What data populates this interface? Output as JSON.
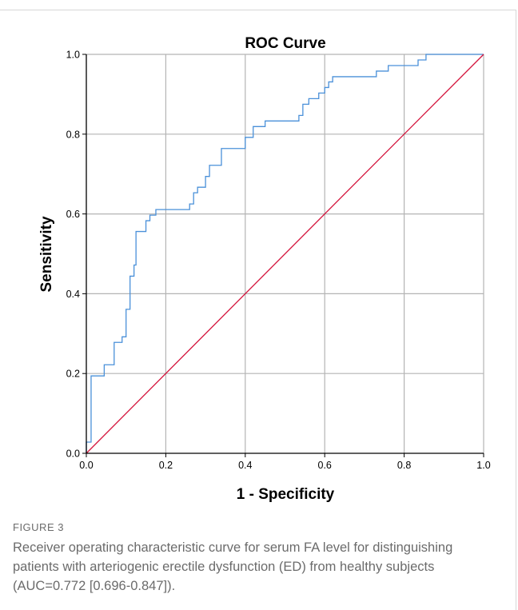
{
  "colors": {
    "grid": "#b4b4b4",
    "axis": "#000000",
    "roc_line": "#4a90d9",
    "reference_line": "#d4143c",
    "caption_text": "#6b6b6b"
  },
  "chart_data": {
    "type": "line",
    "title": "ROC Curve",
    "xlabel": "1 - Specificity",
    "ylabel": "Sensitivity",
    "xlim": [
      0,
      1
    ],
    "ylim": [
      0,
      1
    ],
    "grid": true,
    "x_ticks": [
      "0.0",
      "0.2",
      "0.4",
      "0.6",
      "0.8",
      "1.0"
    ],
    "y_ticks": [
      "0.0",
      "0.2",
      "0.4",
      "0.6",
      "0.8",
      "1.0"
    ],
    "series": [
      {
        "role": "roc",
        "color": "#4a90d9",
        "points": [
          [
            0,
            0
          ],
          [
            0,
            0.028
          ],
          [
            0.012,
            0.028
          ],
          [
            0.012,
            0.194
          ],
          [
            0.045,
            0.194
          ],
          [
            0.045,
            0.222
          ],
          [
            0.07,
            0.222
          ],
          [
            0.07,
            0.278
          ],
          [
            0.09,
            0.278
          ],
          [
            0.09,
            0.292
          ],
          [
            0.1,
            0.292
          ],
          [
            0.1,
            0.361
          ],
          [
            0.11,
            0.361
          ],
          [
            0.11,
            0.444
          ],
          [
            0.12,
            0.444
          ],
          [
            0.12,
            0.472
          ],
          [
            0.125,
            0.472
          ],
          [
            0.125,
            0.556
          ],
          [
            0.15,
            0.556
          ],
          [
            0.15,
            0.583
          ],
          [
            0.16,
            0.583
          ],
          [
            0.16,
            0.597
          ],
          [
            0.175,
            0.597
          ],
          [
            0.175,
            0.611
          ],
          [
            0.26,
            0.611
          ],
          [
            0.26,
            0.625
          ],
          [
            0.27,
            0.625
          ],
          [
            0.27,
            0.653
          ],
          [
            0.28,
            0.653
          ],
          [
            0.28,
            0.667
          ],
          [
            0.3,
            0.667
          ],
          [
            0.3,
            0.694
          ],
          [
            0.31,
            0.694
          ],
          [
            0.31,
            0.722
          ],
          [
            0.34,
            0.722
          ],
          [
            0.34,
            0.764
          ],
          [
            0.4,
            0.764
          ],
          [
            0.4,
            0.792
          ],
          [
            0.42,
            0.792
          ],
          [
            0.42,
            0.819
          ],
          [
            0.45,
            0.819
          ],
          [
            0.45,
            0.833
          ],
          [
            0.535,
            0.833
          ],
          [
            0.535,
            0.847
          ],
          [
            0.545,
            0.847
          ],
          [
            0.545,
            0.875
          ],
          [
            0.56,
            0.875
          ],
          [
            0.56,
            0.889
          ],
          [
            0.585,
            0.889
          ],
          [
            0.585,
            0.903
          ],
          [
            0.6,
            0.903
          ],
          [
            0.6,
            0.917
          ],
          [
            0.61,
            0.917
          ],
          [
            0.61,
            0.931
          ],
          [
            0.62,
            0.931
          ],
          [
            0.62,
            0.944
          ],
          [
            0.73,
            0.944
          ],
          [
            0.73,
            0.958
          ],
          [
            0.76,
            0.958
          ],
          [
            0.76,
            0.972
          ],
          [
            0.835,
            0.972
          ],
          [
            0.835,
            0.986
          ],
          [
            0.855,
            0.986
          ],
          [
            0.855,
            1.0
          ],
          [
            1.0,
            1.0
          ]
        ]
      },
      {
        "role": "reference",
        "color": "#d4143c",
        "points": [
          [
            0,
            0
          ],
          [
            1,
            1
          ]
        ]
      }
    ]
  },
  "caption": {
    "label": "FIGURE 3",
    "text": "Receiver operating characteristic curve for serum FA level for distinguishing patients with arteriogenic erectile dysfunction (ED) from healthy subjects (AUC=0.772 [0.696-0.847])."
  }
}
